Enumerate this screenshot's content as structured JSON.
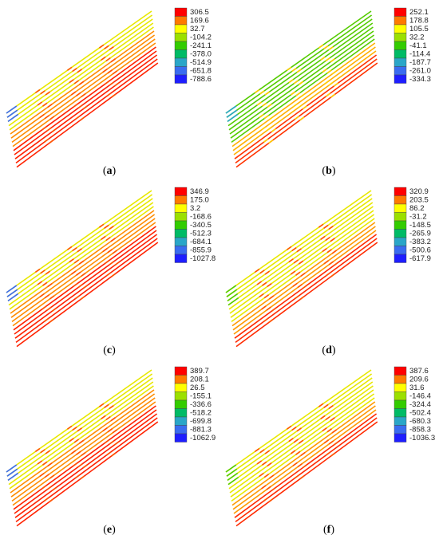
{
  "colors": {
    "scale": [
      "#ff0000",
      "#ff7a00",
      "#ffff00",
      "#9be000",
      "#33cc00",
      "#00bb66",
      "#2aa6c8",
      "#3a6cf0",
      "#1e1eff"
    ],
    "stripe_dominant": [
      "#e6e600",
      "#ff9900",
      "#ff2a00"
    ]
  },
  "panels": [
    {
      "id": "a",
      "caption_letter": "a",
      "legend_values": [
        "306.5",
        "169.6",
        "32.7",
        "-104.2",
        "-241.1",
        "-378.0",
        "-514.9",
        "-651.8",
        "-788.6"
      ],
      "dominant": "mixed-heavy"
    },
    {
      "id": "b",
      "caption_letter": "b",
      "legend_values": [
        "252.1",
        "178.8",
        "105.5",
        "32.2",
        "-41.1",
        "-114.4",
        "-187.7",
        "-261.0",
        "-334.3"
      ],
      "dominant": "green"
    },
    {
      "id": "c",
      "caption_letter": "c",
      "legend_values": [
        "346.9",
        "175.0",
        "3.2",
        "-168.6",
        "-340.5",
        "-512.3",
        "-684.1",
        "-855.9",
        "-1027.8"
      ],
      "dominant": "mixed-heavy"
    },
    {
      "id": "d",
      "caption_letter": "d",
      "legend_values": [
        "320.9",
        "203.5",
        "86.2",
        "-31.2",
        "-148.5",
        "-265.9",
        "-383.2",
        "-500.6",
        "-617.9"
      ],
      "dominant": "yellow"
    },
    {
      "id": "e",
      "caption_letter": "e",
      "legend_values": [
        "389.7",
        "208.1",
        "26.5",
        "-155.1",
        "-336.6",
        "-518.2",
        "-699.8",
        "-881.3",
        "-1062.9"
      ],
      "dominant": "mixed-heavy"
    },
    {
      "id": "f",
      "caption_letter": "f",
      "legend_values": [
        "387.6",
        "209.6",
        "31.6",
        "-146.4",
        "-324.4",
        "-502.4",
        "-680.3",
        "-858.3",
        "-1036.3"
      ],
      "dominant": "yellow"
    }
  ]
}
